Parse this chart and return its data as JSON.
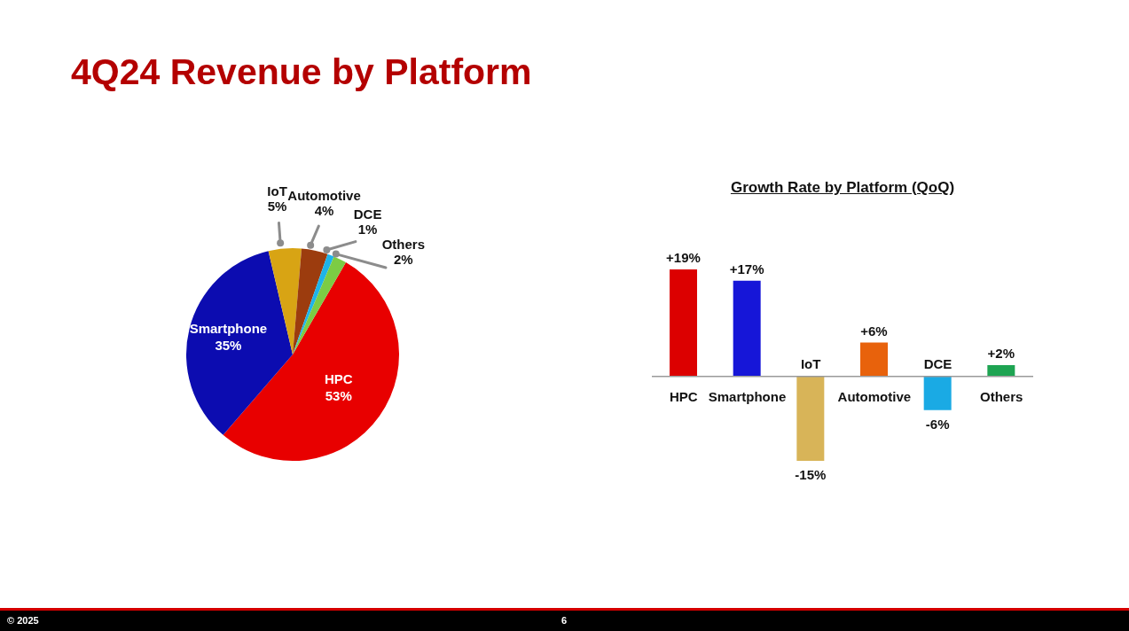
{
  "chart_data": [
    {
      "type": "pie",
      "title": "4Q24 Revenue by Platform",
      "categories": [
        "HPC",
        "Smartphone",
        "IoT",
        "Automotive",
        "DCE",
        "Others"
      ],
      "values": [
        53,
        35,
        5,
        4,
        1,
        2
      ],
      "colors": [
        "#e80000",
        "#0c0cb0",
        "#d8a414",
        "#9c3c0e",
        "#1eb4ea",
        "#7ccc44"
      ],
      "value_labels": [
        "53%",
        "35%",
        "5%",
        "4%",
        "1%",
        "2%"
      ],
      "annotations": [
        "© 2025",
        "6"
      ]
    },
    {
      "type": "bar",
      "title": "Growth Rate by Platform (QoQ)",
      "categories": [
        "HPC",
        "Smartphone",
        "IoT",
        "Automotive",
        "DCE",
        "Others"
      ],
      "values": [
        19,
        17,
        -15,
        6,
        -6,
        2
      ],
      "colors": [
        "#dc0000",
        "#1616d8",
        "#d8b458",
        "#e8620c",
        "#1aaae4",
        "#1ea452"
      ],
      "value_labels": [
        "+19%",
        "+17%",
        "-15%",
        "+6%",
        "-6%",
        "+2%"
      ]
    }
  ]
}
